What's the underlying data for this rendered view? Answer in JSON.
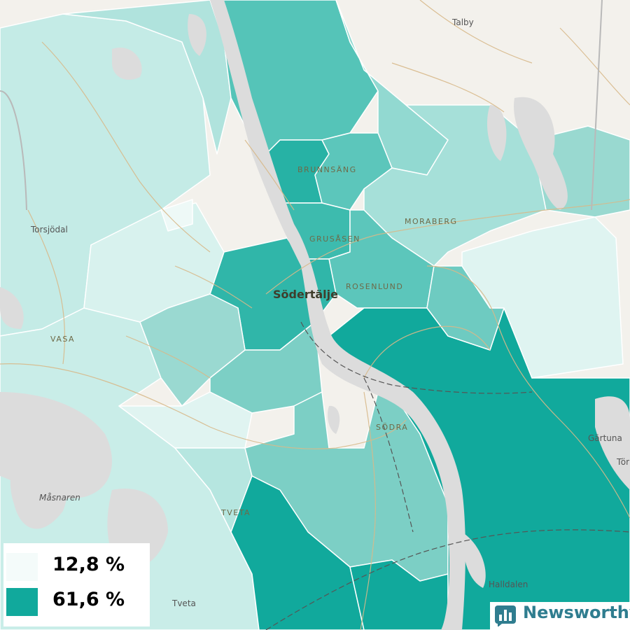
{
  "map": {
    "city_label": "Södertälje",
    "district_labels": [
      "BRUNNSÄNG",
      "MORABERG",
      "GRUSÅSEN",
      "ROSENLUND",
      "SÖDRA",
      "TVETA"
    ],
    "place_labels": [
      "Talby",
      "Torsjödal",
      "VASA",
      "Gärtuna",
      "Tör",
      "Måsnaren",
      "Halldalen",
      "Tveta"
    ],
    "colors": {
      "background_land": "#f3f1ec",
      "water": "#dcdcdc",
      "roads": "#d8b98a",
      "railway": "#555555",
      "choropleth_low": "#eaf7f5",
      "choropleth_high": "#11a99c"
    }
  },
  "legend": {
    "min_label": "12,8 %",
    "max_label": "61,6 %",
    "min_color": "#f4fbfa",
    "max_color": "#11a99c"
  },
  "branding": {
    "name": "Newsworthy",
    "icon": "bar-chart-icon"
  }
}
